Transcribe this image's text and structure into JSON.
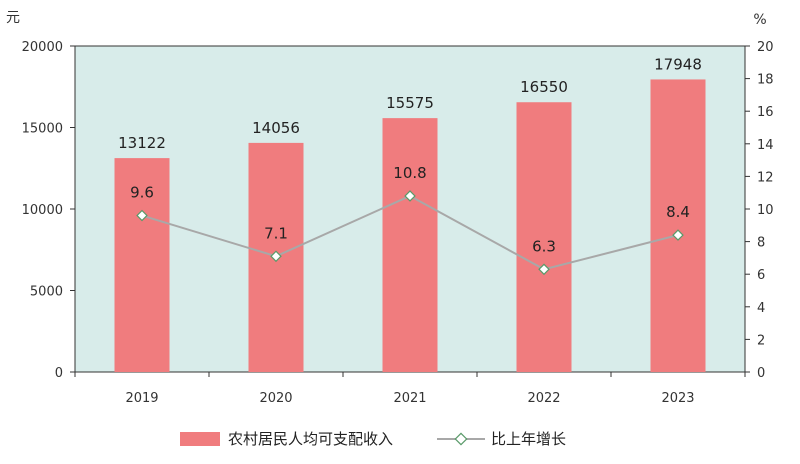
{
  "chart_data": {
    "type": "bar",
    "categories": [
      "2019",
      "2020",
      "2021",
      "2022",
      "2023"
    ],
    "series": [
      {
        "name": "农村居民人均可支配收入",
        "type": "bar",
        "axis": "left",
        "values": [
          13122,
          14056,
          15575,
          16550,
          17948
        ],
        "labels": [
          "13122",
          "14056",
          "15575",
          "16550",
          "17948"
        ]
      },
      {
        "name": "比上年增长",
        "type": "line",
        "axis": "right",
        "values": [
          9.6,
          7.1,
          10.8,
          6.3,
          8.4
        ],
        "labels": [
          "9.6",
          "7.1",
          "10.8",
          "6.3",
          "8.4"
        ]
      }
    ],
    "y_left": {
      "unit": "元",
      "range": [
        0,
        20000
      ],
      "ticks": [
        0,
        5000,
        10000,
        15000,
        20000
      ],
      "tick_labels": [
        "0",
        "5000",
        "10000",
        "15000",
        "20000"
      ]
    },
    "y_right": {
      "unit": "%",
      "range": [
        0,
        20
      ],
      "ticks": [
        0,
        2,
        4,
        6,
        8,
        10,
        12,
        14,
        16,
        18,
        20
      ],
      "tick_labels": [
        "0",
        "2",
        "4",
        "6",
        "8",
        "10",
        "12",
        "14",
        "16",
        "18",
        "20"
      ]
    },
    "grid": false,
    "legend_position": "bottom",
    "colors": {
      "plot_bg": "#d8ecea",
      "bar": "#f07c7e",
      "line": "#a8a8a8",
      "marker_fill": "#ffffff",
      "marker_stroke": "#5a9a6a",
      "axis": "#333333"
    }
  }
}
